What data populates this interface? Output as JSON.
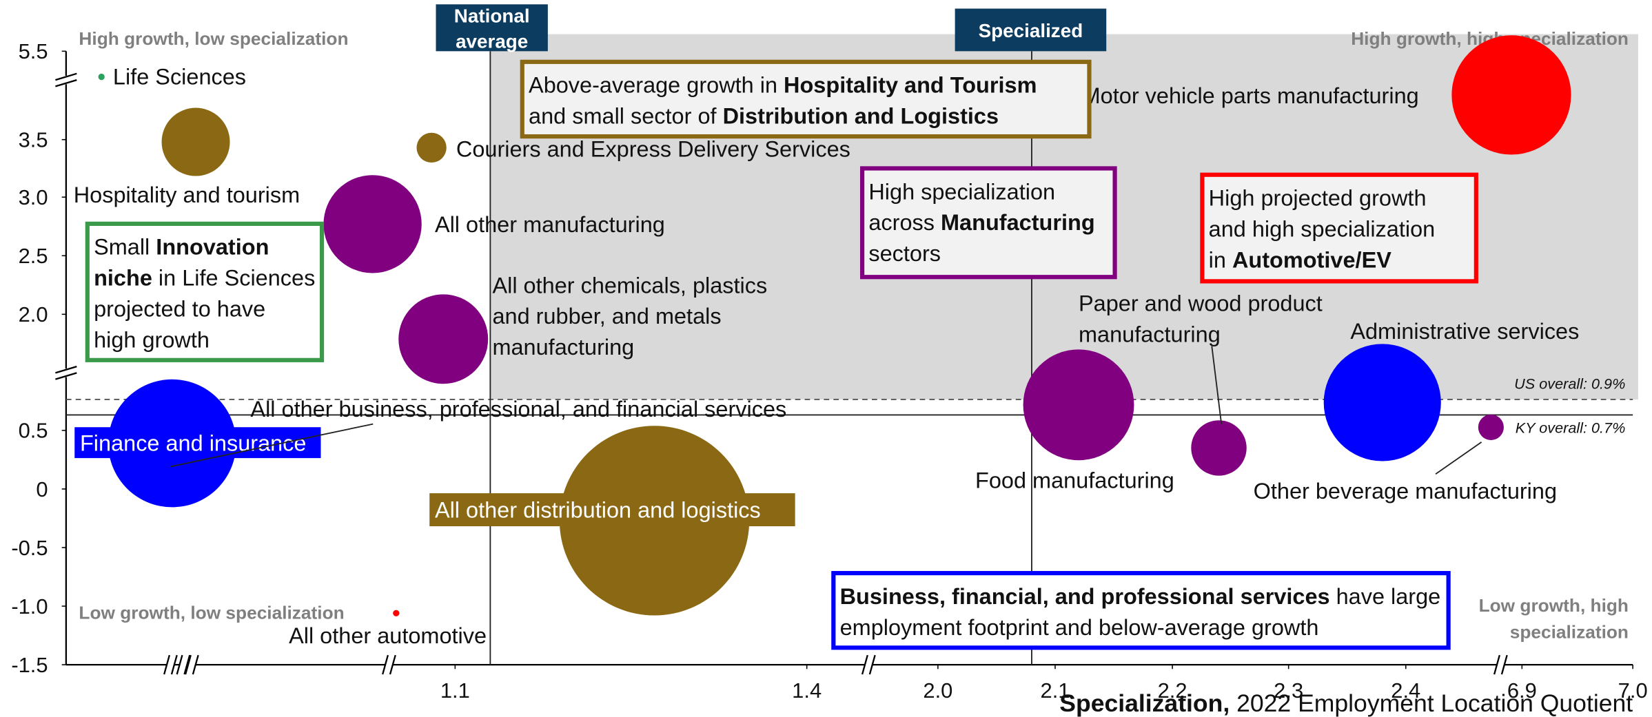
{
  "chart_data": {
    "type": "bubble",
    "xlabel_bold": "Specialization,",
    "xlabel": "2022 Employment Location Quotient",
    "xlim": [
      0.77,
      7.0
    ],
    "ylim": [
      -1.5,
      5.5
    ],
    "xticks": [
      1.1,
      1.4,
      {
        "value": 2,
        "label": "2.0"
      },
      2.1,
      2.2,
      2.3,
      2.4,
      6.9,
      {
        "value": 7,
        "label": "7.0"
      }
    ],
    "yticks": [
      5.5,
      3.5,
      {
        "value": 3,
        "label": "3.0"
      },
      2.5,
      {
        "value": 2,
        "label": "2.0"
      },
      0.5,
      0,
      -0.5,
      {
        "value": -1,
        "label": "-1.0"
      },
      -1.5
    ],
    "quadrant_labels": [
      "High growth, low specialization",
      "High growth, high specialization",
      "Low growth, low specialization",
      "Low growth, high specialization"
    ],
    "vertical_lines": [
      {
        "label": "National average",
        "x": 1.13
      },
      {
        "label": "Specialized",
        "x": 2.08
      }
    ],
    "horizontal_lines": [
      {
        "label": "US overall: 0.9%",
        "y": 0.9,
        "dashed": true
      },
      {
        "label": "KY overall: 0.7%",
        "y": 0.7
      }
    ],
    "points": [
      {
        "name": "Life Sciences",
        "x": 0.8,
        "y": 4.92,
        "size": 90,
        "color": "#2ca25f"
      },
      {
        "name": "Hospitality and tourism",
        "x": 0.88,
        "y": 3.48,
        "size": 10240,
        "color": "#8b6914"
      },
      {
        "name": "Couriers and Express Delivery Services",
        "x": 1.08,
        "y": 3.43,
        "size": 1960,
        "color": "#8b6914"
      },
      {
        "name": "All other manufacturing",
        "x": 1.03,
        "y": 2.77,
        "size": 21160,
        "color": "#800080"
      },
      {
        "name": "All other chemicals, plastics and rubber, and metals manufacturing",
        "x": 1.09,
        "y": 1.68,
        "size": 17640,
        "color": "#800080"
      },
      {
        "name": "Finance and insurance",
        "x": 0.86,
        "y": 0.39,
        "size": 36000,
        "color": "#0000ff"
      },
      {
        "name": "All other distribution and logistics",
        "x": 1.27,
        "y": -0.27,
        "size": 79210,
        "color": "#8b6914"
      },
      {
        "name": "Motor vehicle parts manufacturing",
        "x": 6.49,
        "y": 4.51,
        "size": 31360,
        "color": "#ff0000"
      },
      {
        "name": "Food manufacturing",
        "x": 2.12,
        "y": 0.83,
        "size": 27040,
        "color": "#800080"
      },
      {
        "name": "Paper and wood product manufacturing",
        "x": 2.24,
        "y": 0.35,
        "size": 6760,
        "color": "#800080"
      },
      {
        "name": "Administrative services",
        "x": 2.38,
        "y": 0.86,
        "size": 30250,
        "color": "#0000ff"
      },
      {
        "name": "Other beverage manufacturing",
        "x": 5.7,
        "y": 0.54,
        "size": 1440,
        "color": "#800080"
      },
      {
        "name": "All other automotive",
        "x": 1.05,
        "y": -1.06,
        "size": 90,
        "color": "#ff0000"
      }
    ],
    "annotations": [
      "All other business, professional, and financial services"
    ],
    "boxes": [
      {
        "color": "#8b6914",
        "lines": [
          [
            {
              "text": "Above-average growth in "
            },
            {
              "text": "Hospitality and Tourism",
              "bold": true
            }
          ],
          [
            {
              "text": "and small sector of "
            },
            {
              "text": "Distribution and Logistics",
              "bold": true
            }
          ]
        ]
      },
      {
        "color": "#800080",
        "lines": [
          [
            {
              "text": "High specialization"
            }
          ],
          [
            {
              "text": "across "
            },
            {
              "text": "Manufacturing",
              "bold": true
            }
          ],
          [
            {
              "text": "sectors"
            }
          ]
        ]
      },
      {
        "color": "#ff0000",
        "lines": [
          [
            {
              "text": "High projected growth"
            }
          ],
          [
            {
              "text": "and high specialization"
            }
          ],
          [
            {
              "text": "in "
            },
            {
              "text": "Automotive/EV",
              "bold": true
            }
          ]
        ]
      },
      {
        "color": "#3a9a4a",
        "lines": [
          [
            {
              "text": "Small "
            },
            {
              "text": "Innovation",
              "bold": true
            }
          ],
          [
            {
              "text": "niche",
              "bold": true
            },
            {
              "text": " in Life Sciences"
            }
          ],
          [
            {
              "text": "projected to have"
            }
          ],
          [
            {
              "text": "high growth"
            }
          ]
        ]
      },
      {
        "color": "#0000ff",
        "lines": [
          [
            {
              "text": "Business, financial, and professional services",
              "bold": true
            },
            {
              "text": " have large"
            }
          ],
          [
            {
              "text": "employment footprint and below-average growth"
            }
          ]
        ]
      }
    ]
  }
}
